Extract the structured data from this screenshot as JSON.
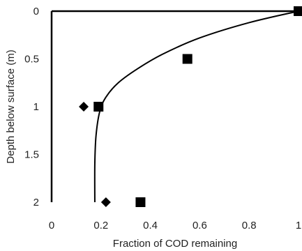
{
  "chart_data": {
    "type": "scatter",
    "title": "",
    "xlabel": "Fraction of COD remaining",
    "ylabel": "Depth below surface (m)",
    "xlim": [
      0,
      1
    ],
    "ylim": [
      0,
      2
    ],
    "y_inverted": true,
    "x_axis_position": "top",
    "grid": false,
    "x_ticks": [
      "0",
      "0.2",
      "0.4",
      "0.6",
      "0.8",
      "1"
    ],
    "y_ticks": [
      "0",
      "0.5",
      "1",
      "1.5",
      "2"
    ],
    "series": [
      {
        "marker": "square",
        "points": [
          {
            "x": 1.0,
            "y": 0.0
          },
          {
            "x": 0.55,
            "y": 0.5
          },
          {
            "x": 0.19,
            "y": 1.0
          },
          {
            "x": 0.36,
            "y": 2.0
          }
        ]
      },
      {
        "marker": "diamond",
        "points": [
          {
            "x": 0.13,
            "y": 1.0
          },
          {
            "x": 0.22,
            "y": 2.0
          }
        ]
      },
      {
        "marker": "line",
        "points": [
          {
            "x": 1.0,
            "y": 0.0
          },
          {
            "x": 0.8,
            "y": 0.12
          },
          {
            "x": 0.6,
            "y": 0.28
          },
          {
            "x": 0.45,
            "y": 0.45
          },
          {
            "x": 0.35,
            "y": 0.6
          },
          {
            "x": 0.27,
            "y": 0.75
          },
          {
            "x": 0.22,
            "y": 0.9
          },
          {
            "x": 0.195,
            "y": 1.05
          },
          {
            "x": 0.18,
            "y": 1.3
          },
          {
            "x": 0.175,
            "y": 1.6
          },
          {
            "x": 0.175,
            "y": 2.0
          }
        ]
      }
    ],
    "colors": {
      "marks": "#000000",
      "text": "#222222",
      "axes": "#000000"
    }
  }
}
